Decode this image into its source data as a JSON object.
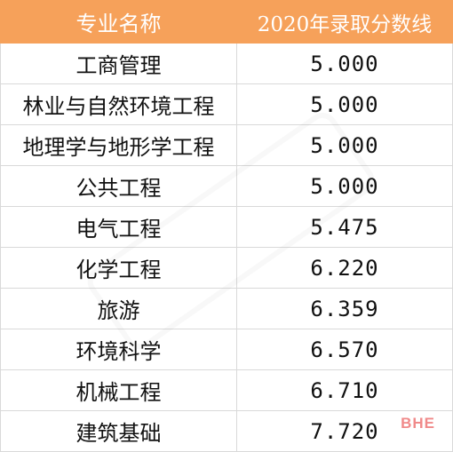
{
  "table": {
    "headers": [
      "专业名称",
      "2020年录取分数线"
    ],
    "rows": [
      {
        "major": "工商管理",
        "score": "5.000"
      },
      {
        "major": "林业与自然环境工程",
        "score": "5.000"
      },
      {
        "major": "地理学与地形学工程",
        "score": "5.000"
      },
      {
        "major": "公共工程",
        "score": "5.000"
      },
      {
        "major": "电气工程",
        "score": "5.475"
      },
      {
        "major": "化学工程",
        "score": "6.220"
      },
      {
        "major": "旅游",
        "score": "6.359"
      },
      {
        "major": "环境科学",
        "score": "6.570"
      },
      {
        "major": "机械工程",
        "score": "6.710"
      },
      {
        "major": "建筑基础",
        "score": "7.720"
      }
    ]
  },
  "logo": {
    "text": "BHE"
  },
  "colors": {
    "header_bg": "#f6a15a",
    "logo": "#f08a8a",
    "grid": "#d9d9d9"
  }
}
